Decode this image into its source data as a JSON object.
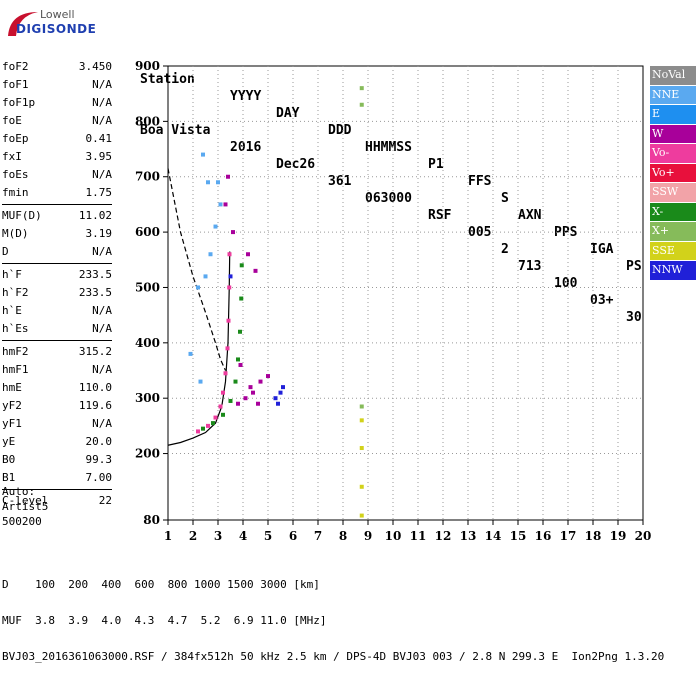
{
  "logo": {
    "brand_top": "Lowell",
    "brand_bottom": "DIGISONDE"
  },
  "header": {
    "labels": [
      "Station",
      "YYYY",
      "DAY",
      "DDD",
      "HHMMSS",
      "P1",
      "FFS",
      "S",
      "AXN",
      "PPS",
      "IGA",
      "PS"
    ],
    "values": [
      "Boa Vista",
      "2016",
      "Dec26",
      "361",
      "063000",
      "RSF",
      "005",
      "2",
      "713",
      "100",
      "03+",
      "30"
    ]
  },
  "params": {
    "group1": [
      {
        "label": "foF2",
        "value": "3.450"
      },
      {
        "label": "foF1",
        "value": "N/A"
      },
      {
        "label": "foF1p",
        "value": "N/A"
      },
      {
        "label": "foE",
        "value": "N/A"
      },
      {
        "label": "foEp",
        "value": "0.41"
      },
      {
        "label": "fxI",
        "value": "3.95"
      },
      {
        "label": "foEs",
        "value": "N/A"
      },
      {
        "label": "fmin",
        "value": "1.75"
      }
    ],
    "group2": [
      {
        "label": "MUF(D)",
        "value": "11.02"
      },
      {
        "label": "M(D)",
        "value": "3.19"
      },
      {
        "label": "D",
        "value": "N/A"
      }
    ],
    "group3": [
      {
        "label": "h`F",
        "value": "233.5"
      },
      {
        "label": "h`F2",
        "value": "233.5"
      },
      {
        "label": "h`E",
        "value": "N/A"
      },
      {
        "label": "h`Es",
        "value": "N/A"
      }
    ],
    "group4": [
      {
        "label": "hmF2",
        "value": "315.2"
      },
      {
        "label": "hmF1",
        "value": "N/A"
      },
      {
        "label": "hmE",
        "value": "110.0"
      },
      {
        "label": "yF2",
        "value": "119.6"
      },
      {
        "label": "yF1",
        "value": "N/A"
      },
      {
        "label": "yE",
        "value": "20.0"
      },
      {
        "label": "B0",
        "value": "99.3"
      },
      {
        "label": "B1",
        "value": "7.00"
      }
    ],
    "group5": [
      {
        "label": "C-level",
        "value": "22"
      }
    ]
  },
  "auto_info": {
    "line1": "Auto:",
    "line2": "Artist5",
    "line3": "500200"
  },
  "legend": [
    {
      "label": "NoVal",
      "color": "#8c8c8c"
    },
    {
      "label": "NNE",
      "color": "#5aa9f0"
    },
    {
      "label": "E",
      "color": "#1e8ff0"
    },
    {
      "label": "W",
      "color": "#a8009a"
    },
    {
      "label": "Vo-",
      "color": "#ee3c9e"
    },
    {
      "label": "Vo+",
      "color": "#e8103c"
    },
    {
      "label": "SSW",
      "color": "#f2a3a8"
    },
    {
      "label": "X-",
      "color": "#1a8a1a"
    },
    {
      "label": "X+",
      "color": "#86bb5a"
    },
    {
      "label": "SSE",
      "color": "#d2d21a"
    },
    {
      "label": "NNW",
      "color": "#2020d8"
    }
  ],
  "bottom": {
    "d_row": "D    100  200  400  600  800 1000 1500 3000 [km]",
    "muf_row": "MUF  3.8  3.9  4.0  4.3  4.7  5.2  6.9 11.0 [MHz]",
    "footer": "BVJ03_2016361063000.RSF / 384fx512h 50 kHz 2.5 km / DPS-4D BVJ03 003 / 2.8 N 299.3 E  Ion2Png 1.3.20"
  },
  "chart_data": {
    "type": "scatter",
    "title": "",
    "xlabel": "",
    "ylabel": "",
    "xlim": [
      1,
      20
    ],
    "ylim": [
      80,
      900
    ],
    "xticks": [
      1,
      2,
      3,
      4,
      5,
      6,
      7,
      8,
      9,
      10,
      11,
      12,
      13,
      14,
      15,
      16,
      17,
      18,
      19,
      20
    ],
    "yticks": [
      80,
      200,
      300,
      400,
      500,
      600,
      700,
      800,
      900
    ],
    "grid": "dotted",
    "series": [
      {
        "name": "O-trace (Vo-)",
        "color": "#ee3c9e",
        "points": [
          [
            2.2,
            240
          ],
          [
            2.6,
            250
          ],
          [
            2.9,
            265
          ],
          [
            3.1,
            285
          ],
          [
            3.2,
            310
          ],
          [
            3.3,
            345
          ],
          [
            3.38,
            390
          ],
          [
            3.42,
            440
          ],
          [
            3.45,
            500
          ],
          [
            3.46,
            560
          ]
        ]
      },
      {
        "name": "X-trace (X-)",
        "color": "#1a8a1a",
        "points": [
          [
            2.4,
            245
          ],
          [
            2.8,
            255
          ],
          [
            3.2,
            270
          ],
          [
            3.5,
            295
          ],
          [
            3.7,
            330
          ],
          [
            3.8,
            370
          ],
          [
            3.88,
            420
          ],
          [
            3.93,
            480
          ],
          [
            3.95,
            540
          ]
        ]
      },
      {
        "name": "Oblique (W)",
        "color": "#a8009a",
        "points": [
          [
            3.8,
            290
          ],
          [
            4.1,
            300
          ],
          [
            4.4,
            310
          ],
          [
            4.7,
            330
          ],
          [
            5.0,
            340
          ],
          [
            3.9,
            360
          ],
          [
            4.3,
            320
          ],
          [
            4.6,
            290
          ],
          [
            3.6,
            600
          ],
          [
            3.3,
            650
          ],
          [
            3.4,
            700
          ],
          [
            4.2,
            560
          ],
          [
            4.5,
            530
          ]
        ]
      },
      {
        "name": "Oblique (NNE)",
        "color": "#5aa9f0",
        "points": [
          [
            2.2,
            500
          ],
          [
            2.5,
            520
          ],
          [
            2.7,
            560
          ],
          [
            2.9,
            610
          ],
          [
            3.1,
            650
          ],
          [
            2.6,
            690
          ],
          [
            2.4,
            740
          ],
          [
            3.0,
            690
          ],
          [
            1.9,
            380
          ],
          [
            2.3,
            330
          ]
        ]
      },
      {
        "name": "Oblique (NNW)",
        "color": "#2020d8",
        "points": [
          [
            5.3,
            300
          ],
          [
            5.5,
            310
          ],
          [
            5.6,
            320
          ],
          [
            5.4,
            290
          ],
          [
            3.5,
            520
          ]
        ]
      },
      {
        "name": "Vertical line (SSE)",
        "color": "#d2d21a",
        "points": [
          [
            8.75,
            88
          ],
          [
            8.75,
            140
          ],
          [
            8.75,
            210
          ],
          [
            8.75,
            260
          ]
        ]
      },
      {
        "name": "Vertical line (X+)",
        "color": "#86bb5a",
        "points": [
          [
            8.75,
            830
          ],
          [
            8.75,
            860
          ],
          [
            8.75,
            285
          ]
        ]
      }
    ],
    "profile_solid": [
      [
        1.0,
        215
      ],
      [
        1.5,
        220
      ],
      [
        2.0,
        228
      ],
      [
        2.5,
        238
      ],
      [
        2.9,
        255
      ],
      [
        3.15,
        285
      ],
      [
        3.3,
        330
      ],
      [
        3.4,
        400
      ],
      [
        3.45,
        500
      ],
      [
        3.47,
        565
      ]
    ],
    "muf_dashed": [
      [
        1.0,
        715
      ],
      [
        1.5,
        600
      ],
      [
        2.0,
        520
      ],
      [
        2.5,
        455
      ],
      [
        2.9,
        400
      ],
      [
        3.1,
        370
      ],
      [
        3.3,
        350
      ]
    ]
  }
}
